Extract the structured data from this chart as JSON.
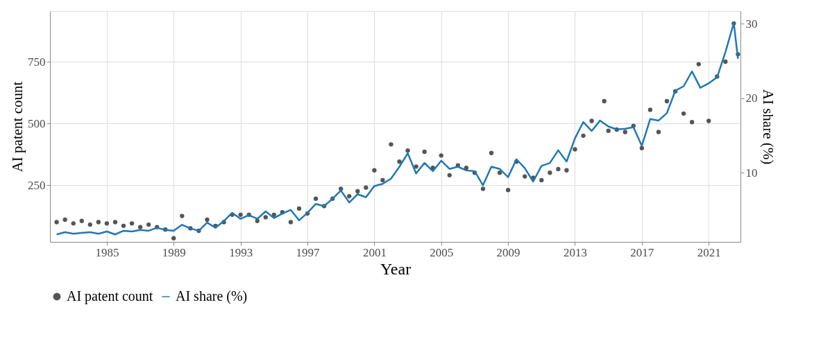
{
  "chart_data": {
    "type": "scatter",
    "xlabel": "Year",
    "ylabel": "AI patent count",
    "y2label": "AI share (%)",
    "xlim": [
      1981.6,
      2022.9
    ],
    "xticks": [
      1985,
      1989,
      1993,
      1997,
      2001,
      2005,
      2009,
      2013,
      2017,
      2021
    ],
    "ylim": [
      20,
      955
    ],
    "yticks": [
      250,
      500,
      750
    ],
    "y2lim": [
      0.7,
      31.7
    ],
    "y2ticks": [
      10,
      20,
      30
    ],
    "grid": true,
    "legend": "bottom",
    "series": [
      {
        "name": "AI patent count",
        "marker": "circle",
        "color": "#555555",
        "x": [
          1982,
          1982.5,
          1983,
          1983.5,
          1984,
          1984.5,
          1985,
          1985.5,
          1986,
          1986.5,
          1987,
          1987.5,
          1988,
          1988.5,
          1989,
          1989.5,
          1990,
          1990.5,
          1991,
          1991.5,
          1992,
          1992.5,
          1993,
          1993.5,
          1994,
          1994.5,
          1995,
          1995.5,
          1996,
          1996.5,
          1997,
          1997.5,
          1998,
          1998.5,
          1999,
          1999.5,
          2000,
          2000.5,
          2001,
          2001.5,
          2002,
          2002.5,
          2003,
          2003.5,
          2004,
          2004.5,
          2005,
          2005.5,
          2006,
          2006.5,
          2007,
          2007.5,
          2008,
          2008.5,
          2009,
          2009.5,
          2010,
          2010.5,
          2011,
          2011.5,
          2012,
          2012.5,
          2013,
          2013.5,
          2014,
          2014.75,
          2015,
          2015.5,
          2016,
          2016.5,
          2017,
          2017.5,
          2018,
          2018.5,
          2019,
          2019.5,
          2020,
          2020.4,
          2021,
          2021.5,
          2022,
          2022.5,
          2022.75
        ],
        "values": [
          100,
          110,
          95,
          105,
          90,
          100,
          95,
          100,
          85,
          95,
          80,
          90,
          80,
          70,
          35,
          125,
          75,
          65,
          110,
          85,
          100,
          130,
          130,
          130,
          105,
          120,
          130,
          140,
          100,
          155,
          135,
          195,
          165,
          195,
          235,
          205,
          225,
          240,
          310,
          270,
          415,
          345,
          390,
          325,
          385,
          320,
          370,
          290,
          330,
          320,
          300,
          235,
          380,
          300,
          230,
          345,
          285,
          280,
          270,
          300,
          315,
          310,
          395,
          450,
          510,
          590,
          470,
          475,
          465,
          490,
          400,
          555,
          465,
          590,
          630,
          540,
          505,
          740,
          510,
          690,
          750,
          905,
          780
        ]
      },
      {
        "name": "AI share (%)",
        "type": "line",
        "axis": "y2",
        "color": "#1f78b4",
        "line_style": "solid",
        "x": [
          1982,
          1982.5,
          1983,
          1983.5,
          1984,
          1984.5,
          1985,
          1985.5,
          1986,
          1986.5,
          1987,
          1987.5,
          1988,
          1988.5,
          1989,
          1989.5,
          1990,
          1990.5,
          1991,
          1991.5,
          1992,
          1992.5,
          1993,
          1993.5,
          1994,
          1994.5,
          1995,
          1995.5,
          1996,
          1996.5,
          1997,
          1997.5,
          1998,
          1998.5,
          1999,
          1999.5,
          2000,
          2000.5,
          2001,
          2001.5,
          2002,
          2002.5,
          2003,
          2003.5,
          2004,
          2004.5,
          2005,
          2005.5,
          2006,
          2006.5,
          2007,
          2007.5,
          2008,
          2008.5,
          2009,
          2009.5,
          2010,
          2010.5,
          2011,
          2011.5,
          2012,
          2012.5,
          2013,
          2013.5,
          2014,
          2014.5,
          2015,
          2015.5,
          2016,
          2016.5,
          2017,
          2017.5,
          2018,
          2018.5,
          2019,
          2019.5,
          2020,
          2020.5,
          2021,
          2021.5,
          2022,
          2022.5,
          2022.75
        ],
        "values": [
          1.7,
          2.0,
          1.8,
          1.9,
          2.0,
          1.8,
          2.1,
          1.7,
          2.2,
          2.1,
          2.3,
          2.2,
          2.6,
          2.3,
          2.2,
          3.0,
          2.5,
          2.2,
          3.3,
          2.6,
          3.5,
          4.6,
          3.8,
          4.3,
          3.8,
          4.8,
          3.9,
          4.5,
          5.0,
          3.6,
          4.6,
          5.8,
          5.5,
          6.5,
          7.6,
          6.0,
          7.1,
          6.7,
          8.2,
          8.5,
          9.2,
          10.8,
          12.6,
          9.9,
          11.3,
          10.2,
          11.6,
          10.5,
          10.8,
          10.3,
          10.2,
          8.3,
          10.8,
          10.5,
          9.4,
          11.8,
          10.6,
          8.8,
          10.9,
          11.3,
          13.0,
          11.5,
          14.6,
          16.8,
          15.6,
          17.0,
          16.2,
          15.8,
          15.9,
          16.1,
          13.6,
          17.2,
          17.0,
          18.0,
          21.0,
          21.6,
          23.6,
          21.4,
          22.0,
          22.8,
          26.2,
          30.1,
          25.3
        ]
      }
    ]
  }
}
